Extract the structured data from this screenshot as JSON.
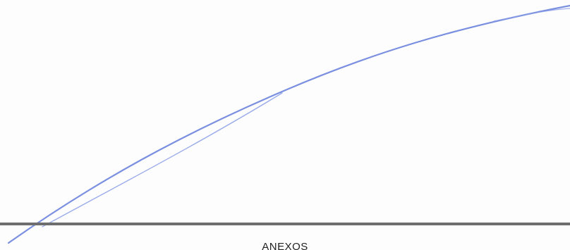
{
  "document": {
    "section_heading": "ANEXOS"
  },
  "colors": {
    "ink": "#7a8fe0",
    "rule": "#6e6e6e",
    "paper": "#fdfdfd",
    "text": "#222222"
  }
}
